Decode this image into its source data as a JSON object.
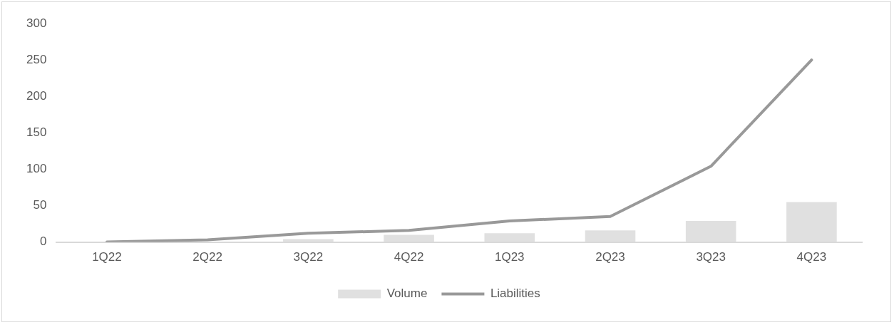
{
  "chart_data": {
    "type": "bar",
    "categories": [
      "1Q22",
      "2Q22",
      "3Q22",
      "4Q22",
      "1Q23",
      "2Q23",
      "3Q23",
      "4Q23"
    ],
    "series": [
      {
        "name": "Volume",
        "color": "#e0e0e0",
        "values": [
          0,
          0,
          4,
          10,
          12,
          16,
          29,
          55
        ]
      },
      {
        "name": "Liabilities",
        "type": "line",
        "color": "#999999",
        "values": [
          0,
          3,
          12,
          16,
          29,
          35,
          104,
          250
        ]
      }
    ],
    "ylim": [
      0,
      300
    ],
    "yticks": [
      0,
      50,
      100,
      150,
      200,
      250,
      300
    ],
    "grid": false,
    "legend": "bottom",
    "marker": "none",
    "line_style": "solid"
  }
}
